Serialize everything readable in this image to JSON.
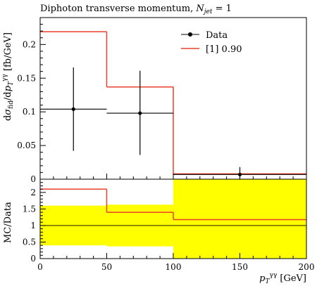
{
  "chart_data": [
    {
      "type": "line",
      "title": "Diphoton transverse momentum, N_jet = 1",
      "title_main": "Diphoton transverse momentum, ",
      "title_sym": "N",
      "title_sub": "jet",
      "title_tail": " = 1",
      "ylabel": "dσ_fid/dp_T^γγ [fb/GeV]",
      "xlim": [
        0,
        200
      ],
      "ylim": [
        0,
        0.24
      ],
      "yticks": [
        "0",
        "0.05",
        "0.1",
        "0.15",
        "0.2"
      ],
      "ytick_values": [
        0,
        0.05,
        0.1,
        0.15,
        0.2
      ],
      "legend_position": "top-right",
      "series": [
        {
          "name": "Data",
          "kind": "points",
          "color": "#000000",
          "points": [
            {
              "x": 25,
              "y": 0.104,
              "xerr": [
                0,
                50
              ],
              "yerr": [
                0.042,
                0.166
              ]
            },
            {
              "x": 75,
              "y": 0.098,
              "xerr": [
                50,
                100
              ],
              "yerr": [
                0.036,
                0.161
              ]
            },
            {
              "x": 150,
              "y": 0.007,
              "xerr": [
                100,
                200
              ],
              "yerr": [
                0.0,
                0.018
              ]
            }
          ]
        },
        {
          "name": "[1] 0.90",
          "kind": "step",
          "color": "#e8412c",
          "bins": [
            {
              "x0": 0,
              "x1": 50,
              "y": 0.219
            },
            {
              "x0": 50,
              "x1": 100,
              "y": 0.137
            },
            {
              "x0": 100,
              "x1": 200,
              "y": 0.008
            }
          ]
        }
      ]
    },
    {
      "type": "line",
      "ylabel": "MC/Data",
      "xlabel": "p_T^γγ [GeV]",
      "xlabel_sym": "p",
      "xlabel_unit": " [GeV]",
      "xlim": [
        0,
        200
      ],
      "ylim": [
        0,
        2.4
      ],
      "xticks": [
        "0",
        "50",
        "100",
        "150",
        "200"
      ],
      "xtick_values": [
        0,
        50,
        100,
        150,
        200
      ],
      "yticks": [
        "0",
        "0.5",
        "1",
        "1.5",
        "2"
      ],
      "ytick_values": [
        0,
        0.5,
        1,
        1.5,
        2
      ],
      "reference_line": 1,
      "band_color": "#ffff00",
      "uncertainty_band": [
        {
          "x0": 0,
          "x1": 50,
          "y_low": 0.4,
          "y_high": 1.6
        },
        {
          "x0": 50,
          "x1": 100,
          "y_low": 0.37,
          "y_high": 1.63
        },
        {
          "x0": 100,
          "x1": 200,
          "y_low": 0.0,
          "y_high": 2.4
        }
      ],
      "ratio": {
        "color": "#e8412c",
        "bins": [
          {
            "x0": 0,
            "x1": 50,
            "y": 2.1
          },
          {
            "x0": 50,
            "x1": 100,
            "y": 1.4
          },
          {
            "x0": 100,
            "x1": 200,
            "y": 1.18
          }
        ]
      }
    }
  ]
}
